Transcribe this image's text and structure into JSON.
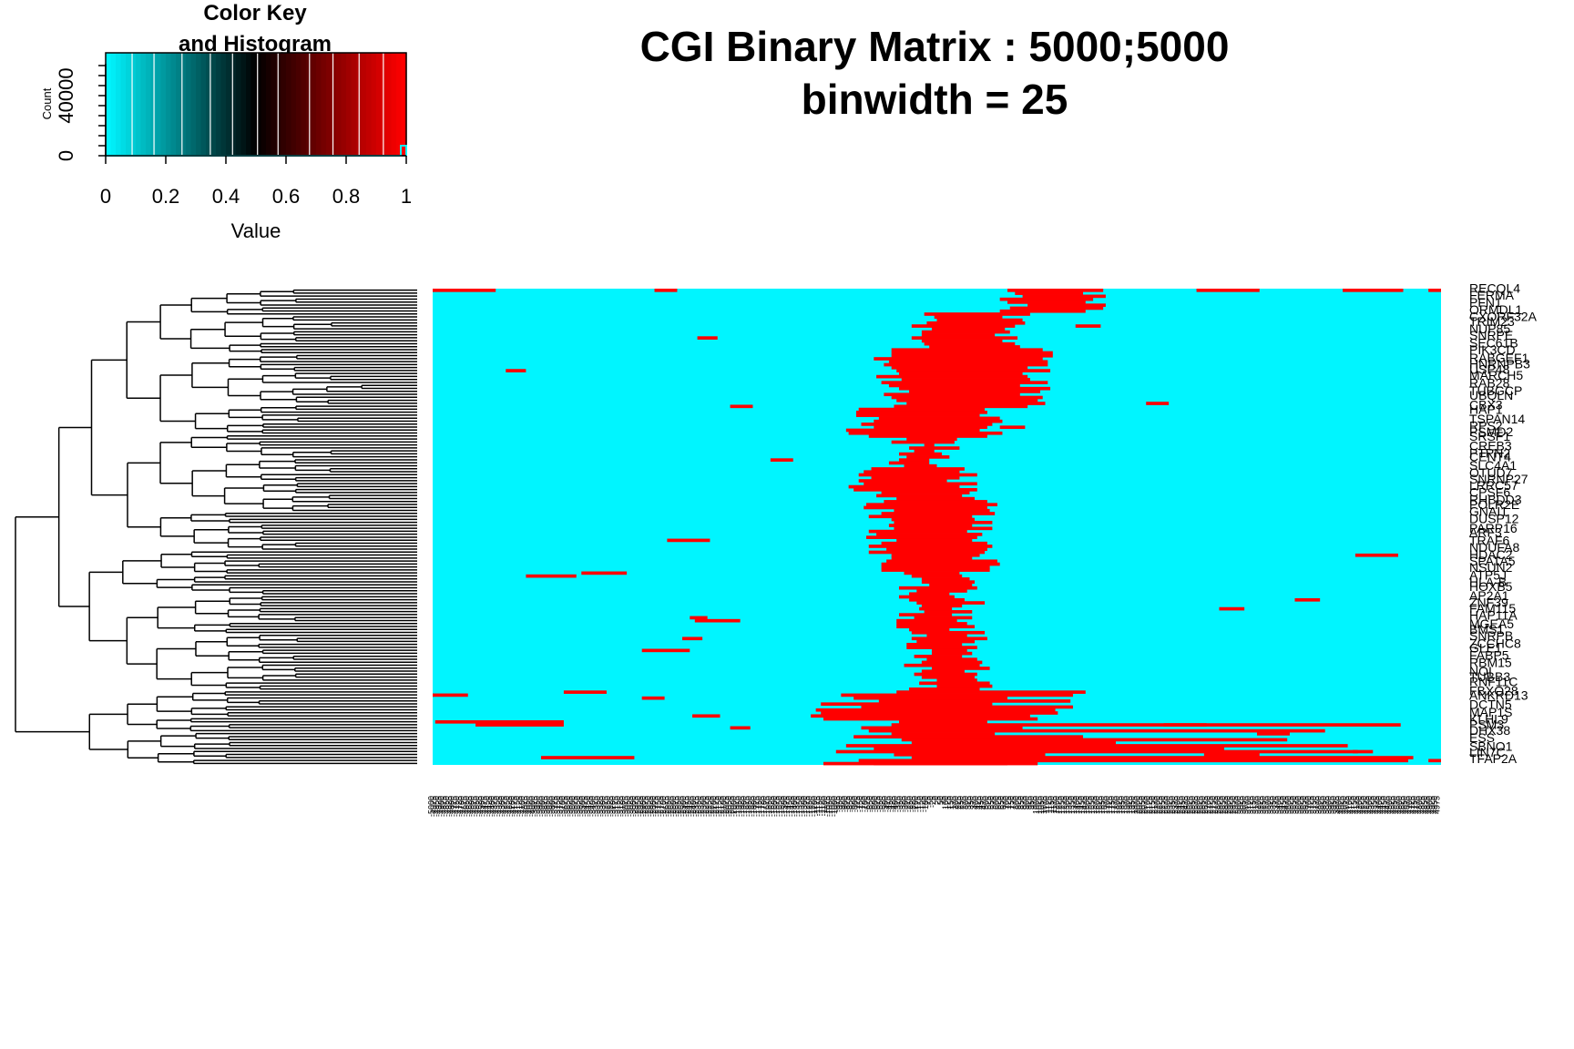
{
  "chart_data": {
    "type": "heatmap",
    "title": "CGI Binary Matrix : 5000;5000",
    "subtitle": "binwidth = 25",
    "value_range": [
      0,
      1
    ],
    "colors": {
      "low": "#00f5ff",
      "mid": "#000000",
      "high": "#ff0000",
      "background": "#00f5ff"
    },
    "color_key": {
      "title_line1": "Color Key",
      "title_line2": "and Histogram",
      "xlabel": "Value",
      "ylabel": "Count",
      "x_ticks": [
        "0",
        "0.2",
        "0.4",
        "0.6",
        "0.8",
        "1"
      ],
      "y_ticks": [
        "0",
        "40000"
      ],
      "histogram_note": "nearly all counts at value 0; small bar near value 1"
    },
    "n_columns": 400,
    "n_rows": 160,
    "row_labels_visible": [
      "RECQL4",
      "FERMA",
      "PFN1",
      "ORMDL1",
      "CXORF32A",
      "TRIM23",
      "NUP85",
      "SNRPE",
      "SEC61B",
      "PIK3CD",
      "RABGEF1",
      "HNRNPB3",
      "USP48",
      "MARCH5",
      "RAB28",
      "TUBGCP",
      "UBQLN",
      "CBX3",
      "HAP1",
      "TSPAN14",
      "RPS2",
      "PSMD2",
      "SRSF1",
      "CREB3",
      "PTPN2",
      "CENT4",
      "SLC4A1",
      "OTUD7",
      "SNRNP27",
      "LRRC57",
      "CPSF6",
      "RHBDD3",
      "POLR2E",
      "GNAI1",
      "DUSP12",
      "PARP16",
      "ARF3",
      "TRAF6",
      "NDUFA8",
      "HDAC2",
      "SPATA5",
      "NSUN2",
      "ATP5J",
      "HLA-B",
      "HOXB5",
      "AP2A1",
      "ZNF39",
      "FAM115",
      "HAP11A",
      "MGEA5",
      "BMS1",
      "SNRPB",
      "ZCCHC8",
      "GLE1",
      "FABP5",
      "RBM15",
      "NOI",
      "TUBB3",
      "RNF11C",
      "FBXO28",
      "ANKRD13",
      "DCTN5",
      "MAP1S",
      "KLHL9",
      "PSM3",
      "DHX38",
      "ESS",
      "SBNO1",
      "LIN7C",
      "TFAP2A"
    ],
    "row_labels_readable": {
      "first": "RECQL4",
      "last": "TFAP2A"
    },
    "red_band_profile": [
      {
        "rows": "1-8",
        "col_start": 230,
        "col_end": 262
      },
      {
        "rows": "9-20",
        "col_start": 195,
        "col_end": 230
      },
      {
        "rows": "21-40",
        "col_start": 182,
        "col_end": 240
      },
      {
        "rows": "41-50",
        "col_start": 170,
        "col_end": 222
      },
      {
        "rows": "51-60",
        "col_start": 188,
        "col_end": 202
      },
      {
        "rows": "61-70",
        "col_start": 172,
        "col_end": 210
      },
      {
        "rows": "71-95",
        "col_start": 178,
        "col_end": 218
      },
      {
        "rows": "96-115",
        "col_start": 190,
        "col_end": 212
      },
      {
        "rows": "116-135",
        "col_start": 194,
        "col_end": 216
      },
      {
        "rows": "136-160",
        "col_start": 150,
        "col_end": 290
      }
    ]
  }
}
